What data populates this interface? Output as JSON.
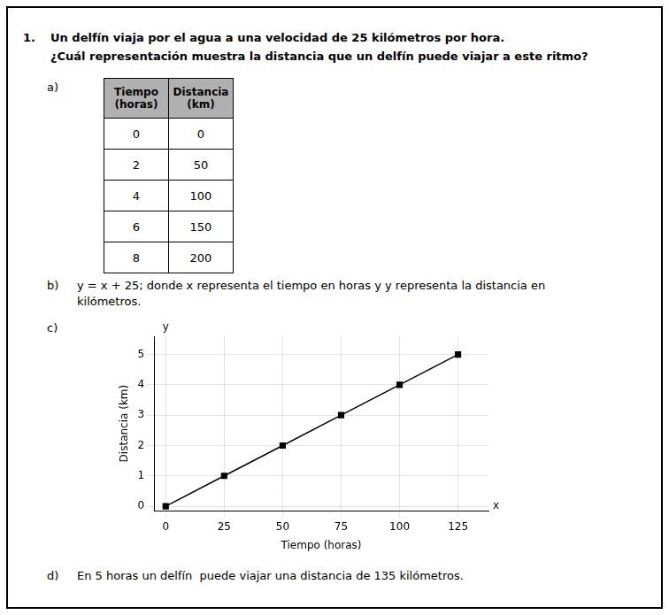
{
  "chart_data": {
    "type": "line",
    "question_number": "1.",
    "question": [
      "Un delfín viaja por el agua a una velocidad de 25 kilómetros por hora.",
      "¿Cuál representación muestra la distancia que un delfín puede viajar a este ritmo?"
    ],
    "options": [
      {
        "label": "a)",
        "table": {
          "columns": [
            "Tiempo\n(horas)",
            "Distancia\n(km)"
          ],
          "rows": [
            [
              0,
              0
            ],
            [
              2,
              50
            ],
            [
              4,
              100
            ],
            [
              6,
              150
            ],
            [
              8,
              200
            ]
          ],
          "header_color": "#b0b0b0"
        }
      },
      {
        "label": "b)",
        "text": "y = x + 25; donde x representa el tiempo en horas y y representa la distancia en\nkilómetros."
      },
      {
        "label": "c)"
      },
      {
        "label": "d)",
        "text": "En 5 horas un delfín  puede viajar una distancia de 135 kilómetros."
      }
    ],
    "x": [
      0,
      25,
      50,
      75,
      100,
      125
    ],
    "values": [
      0,
      1,
      2,
      3,
      4,
      5
    ],
    "color": "#000000",
    "marker": "square",
    "xlim": [
      -5,
      138
    ],
    "ylim": [
      -0.15,
      5.6
    ],
    "xticks": [
      0,
      25,
      50,
      75,
      100,
      125
    ],
    "yticks": [
      0,
      1,
      2,
      3,
      4,
      5
    ],
    "grid": true,
    "xlabel": "Tiempo (horas)",
    "ylabel": "Distancia (km)",
    "x_axis_name": "x",
    "y_axis_name": "y"
  }
}
